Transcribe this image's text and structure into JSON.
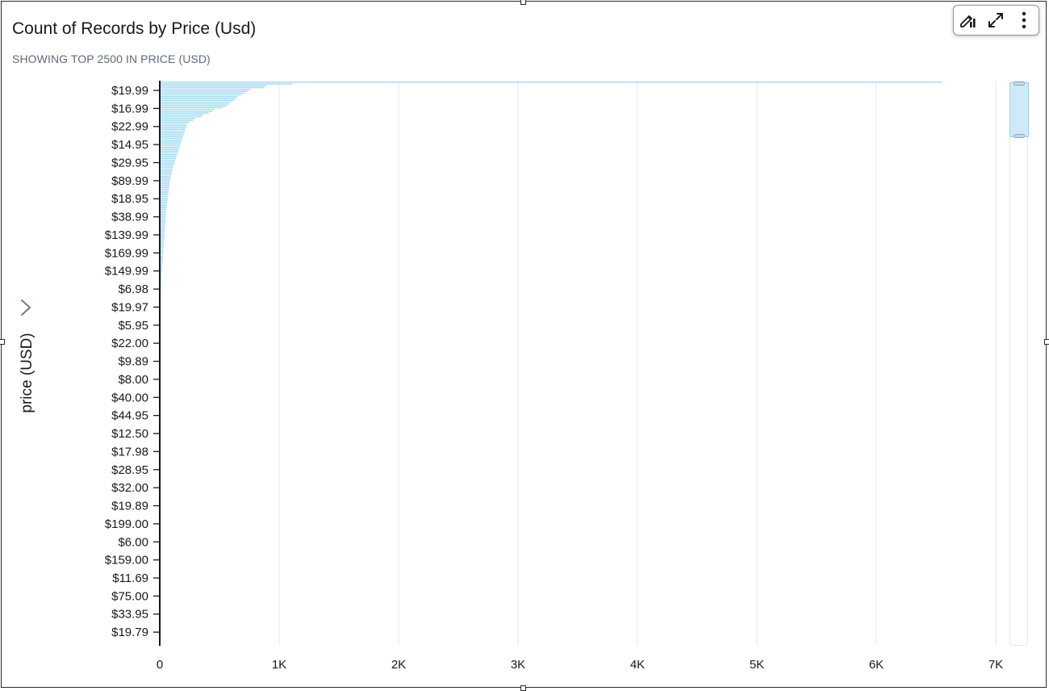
{
  "visual": {
    "title": "Count of Records by Price (Usd)",
    "subtitle": "SHOWING TOP 2500 IN PRICE (USD)",
    "toolbar": {
      "icons": [
        "format-visual-icon",
        "expand-icon",
        "more-options-icon"
      ]
    },
    "expand_icon": "chevron-right-icon"
  },
  "colors": {
    "bar": "#a8dcf0",
    "axis": "#16191f",
    "grid": "#e6e8eb",
    "scroll_window": "#d1e9f6"
  },
  "chart_data": {
    "type": "bar",
    "orientation": "horizontal",
    "title": "Count of Records by Price (Usd)",
    "subtitle": "SHOWING TOP 2500 IN PRICE (USD)",
    "ylabel": "price (USD)",
    "xlabel": "",
    "xlim": [
      0,
      7000
    ],
    "x_ticks": [
      0,
      1000,
      2000,
      3000,
      4000,
      5000,
      6000,
      7000
    ],
    "x_tick_labels": [
      "0",
      "1K",
      "2K",
      "3K",
      "4K",
      "5K",
      "6K",
      "7K"
    ],
    "grid": "vertical",
    "categories": [
      "$19.99",
      "$16.99",
      "$22.99",
      "$14.95",
      "$29.95",
      "$89.99",
      "$18.95",
      "$38.99",
      "$139.99",
      "$169.99",
      "$149.99",
      "$6.98",
      "$19.97",
      "$5.95",
      "$22.00",
      "$9.89",
      "$8.00",
      "$40.00",
      "$44.95",
      "$12.50",
      "$17.98",
      "$28.95",
      "$32.00",
      "$19.89",
      "$199.00",
      "$6.00",
      "$159.00",
      "$11.69",
      "$75.00",
      "$33.95",
      "$19.79"
    ],
    "bar_counts": [
      6550,
      1110,
      890,
      870,
      760,
      740,
      710,
      680,
      650,
      640,
      620,
      600,
      580,
      560,
      530,
      460,
      440,
      410,
      370,
      350,
      300,
      280,
      250,
      230,
      225,
      220,
      215,
      210,
      205,
      200,
      195,
      190,
      185,
      180,
      175,
      170,
      165,
      160,
      155,
      150,
      145,
      140,
      135,
      130,
      125,
      120,
      116,
      112,
      108,
      104,
      100,
      97,
      94,
      91,
      88,
      85,
      83,
      81,
      79,
      77,
      75,
      73,
      71,
      69,
      67,
      65,
      63,
      61,
      59,
      57,
      55,
      53,
      52,
      51,
      50,
      49,
      48,
      47,
      46,
      45,
      44,
      43,
      42,
      41,
      40,
      39,
      38,
      37,
      36,
      35,
      34,
      33,
      32,
      31,
      30,
      29,
      28,
      27,
      26,
      25,
      24,
      23,
      22,
      21,
      20,
      19,
      18,
      17,
      16,
      15,
      14,
      13,
      12,
      11,
      10,
      9,
      8,
      7,
      6,
      5,
      4,
      3,
      2
    ]
  }
}
